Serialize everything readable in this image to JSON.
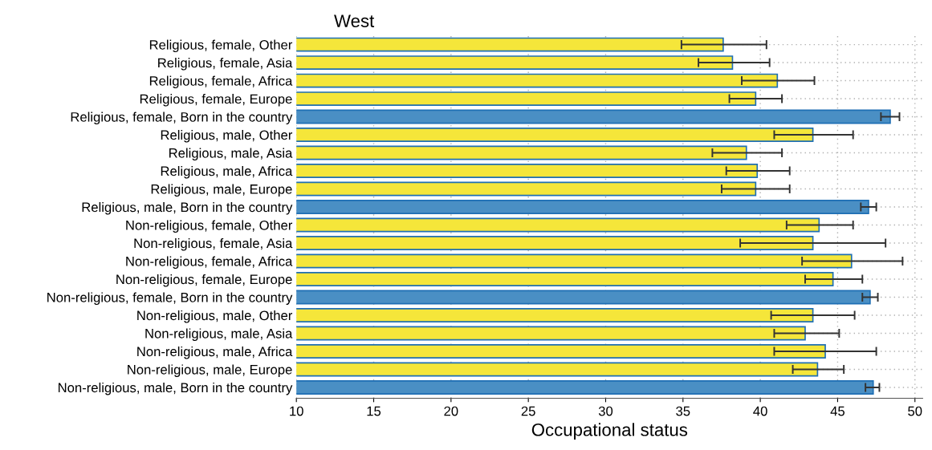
{
  "chart_data": {
    "type": "bar",
    "orientation": "horizontal",
    "title": "West",
    "xlabel": "Occupational status",
    "categories": [
      "Religious, female, Other",
      "Religious, female, Asia",
      "Religious, female, Africa",
      "Religious, female, Europe",
      "Religious, female, Born in the country",
      "Religious, male, Other",
      "Religious, male, Asia",
      "Religious, male, Africa",
      "Religious, male, Europe",
      "Religious, male, Born in the country",
      "Non-religious, female, Other",
      "Non-religious, female, Asia",
      "Non-religious, female, Africa",
      "Non-religious, female, Europe",
      "Non-religious, female, Born in the country",
      "Non-religious, male, Other",
      "Non-religious, male, Asia",
      "Non-religious, male, Africa",
      "Non-religious, male, Europe",
      "Non-religious, male, Born in the country"
    ],
    "values": [
      37.6,
      38.2,
      41.1,
      39.7,
      48.4,
      43.4,
      39.1,
      39.8,
      39.7,
      47.0,
      43.8,
      43.4,
      45.9,
      44.7,
      47.1,
      43.4,
      42.9,
      44.2,
      43.7,
      47.3
    ],
    "errors": [
      [
        34.9,
        40.4
      ],
      [
        36.0,
        40.6
      ],
      [
        38.8,
        43.5
      ],
      [
        38.0,
        41.4
      ],
      [
        47.8,
        49.0
      ],
      [
        40.9,
        46.0
      ],
      [
        36.9,
        41.4
      ],
      [
        37.8,
        41.9
      ],
      [
        37.5,
        41.9
      ],
      [
        46.5,
        47.5
      ],
      [
        41.7,
        46.0
      ],
      [
        38.7,
        48.1
      ],
      [
        42.7,
        49.2
      ],
      [
        42.9,
        46.6
      ],
      [
        46.6,
        47.6
      ],
      [
        40.7,
        46.1
      ],
      [
        40.9,
        45.1
      ],
      [
        40.9,
        47.5
      ],
      [
        42.1,
        45.4
      ],
      [
        46.8,
        47.7
      ]
    ],
    "colors": [
      "#f5e63a",
      "#f5e63a",
      "#f5e63a",
      "#f5e63a",
      "#4a8fc4",
      "#f5e63a",
      "#f5e63a",
      "#f5e63a",
      "#f5e63a",
      "#4a8fc4",
      "#f5e63a",
      "#f5e63a",
      "#f5e63a",
      "#f5e63a",
      "#4a8fc4",
      "#f5e63a",
      "#f5e63a",
      "#f5e63a",
      "#f5e63a",
      "#4a8fc4"
    ],
    "xlim": [
      10,
      50.5
    ],
    "xticks": [
      10,
      15,
      20,
      25,
      30,
      35,
      40,
      45,
      50
    ],
    "grid": true
  }
}
